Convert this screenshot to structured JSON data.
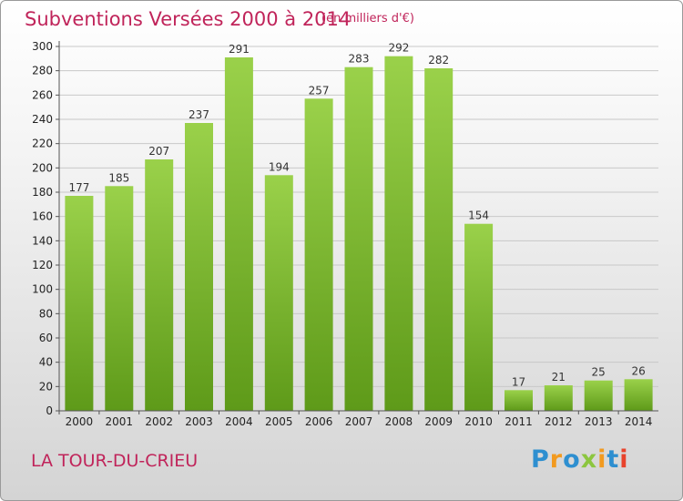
{
  "header": {
    "title": "Subventions Versées 2000 à 2014",
    "subtitle": "(en milliers d'€)"
  },
  "commune": "LA TOUR-DU-CRIEU",
  "logo": {
    "letters": [
      {
        "char": "P",
        "color": "#2e8fd0"
      },
      {
        "char": "r",
        "color": "#f29a1f"
      },
      {
        "char": "o",
        "color": "#2e8fd0"
      },
      {
        "char": "x",
        "color": "#8cc63f"
      },
      {
        "char": "i",
        "color": "#f29a1f"
      },
      {
        "char": "t",
        "color": "#2e8fd0"
      },
      {
        "char": "i",
        "color": "#e8432c"
      }
    ],
    "text": "Proxiti"
  },
  "colors": {
    "accent": "#c0245a",
    "bar_top": "#9ad14a",
    "bar_bottom": "#5e9a19",
    "axis": "#555555",
    "grid": "#c8c8c8"
  },
  "chart_data": {
    "type": "bar",
    "categories": [
      "2000",
      "2001",
      "2002",
      "2003",
      "2004",
      "2005",
      "2006",
      "2007",
      "2008",
      "2009",
      "2010",
      "2011",
      "2012",
      "2013",
      "2014"
    ],
    "values": [
      177,
      185,
      207,
      237,
      291,
      194,
      257,
      283,
      292,
      282,
      154,
      17,
      21,
      25,
      26
    ],
    "data_labels": [
      "177",
      "185",
      "207",
      "237",
      "291",
      "194",
      "257",
      "283",
      "292",
      "282",
      "154",
      "17",
      "21",
      "25",
      "26"
    ],
    "y_ticks": [
      0,
      20,
      40,
      60,
      80,
      100,
      120,
      140,
      160,
      180,
      200,
      220,
      240,
      260,
      280,
      300
    ],
    "ylim": [
      0,
      300
    ],
    "grid": true
  }
}
